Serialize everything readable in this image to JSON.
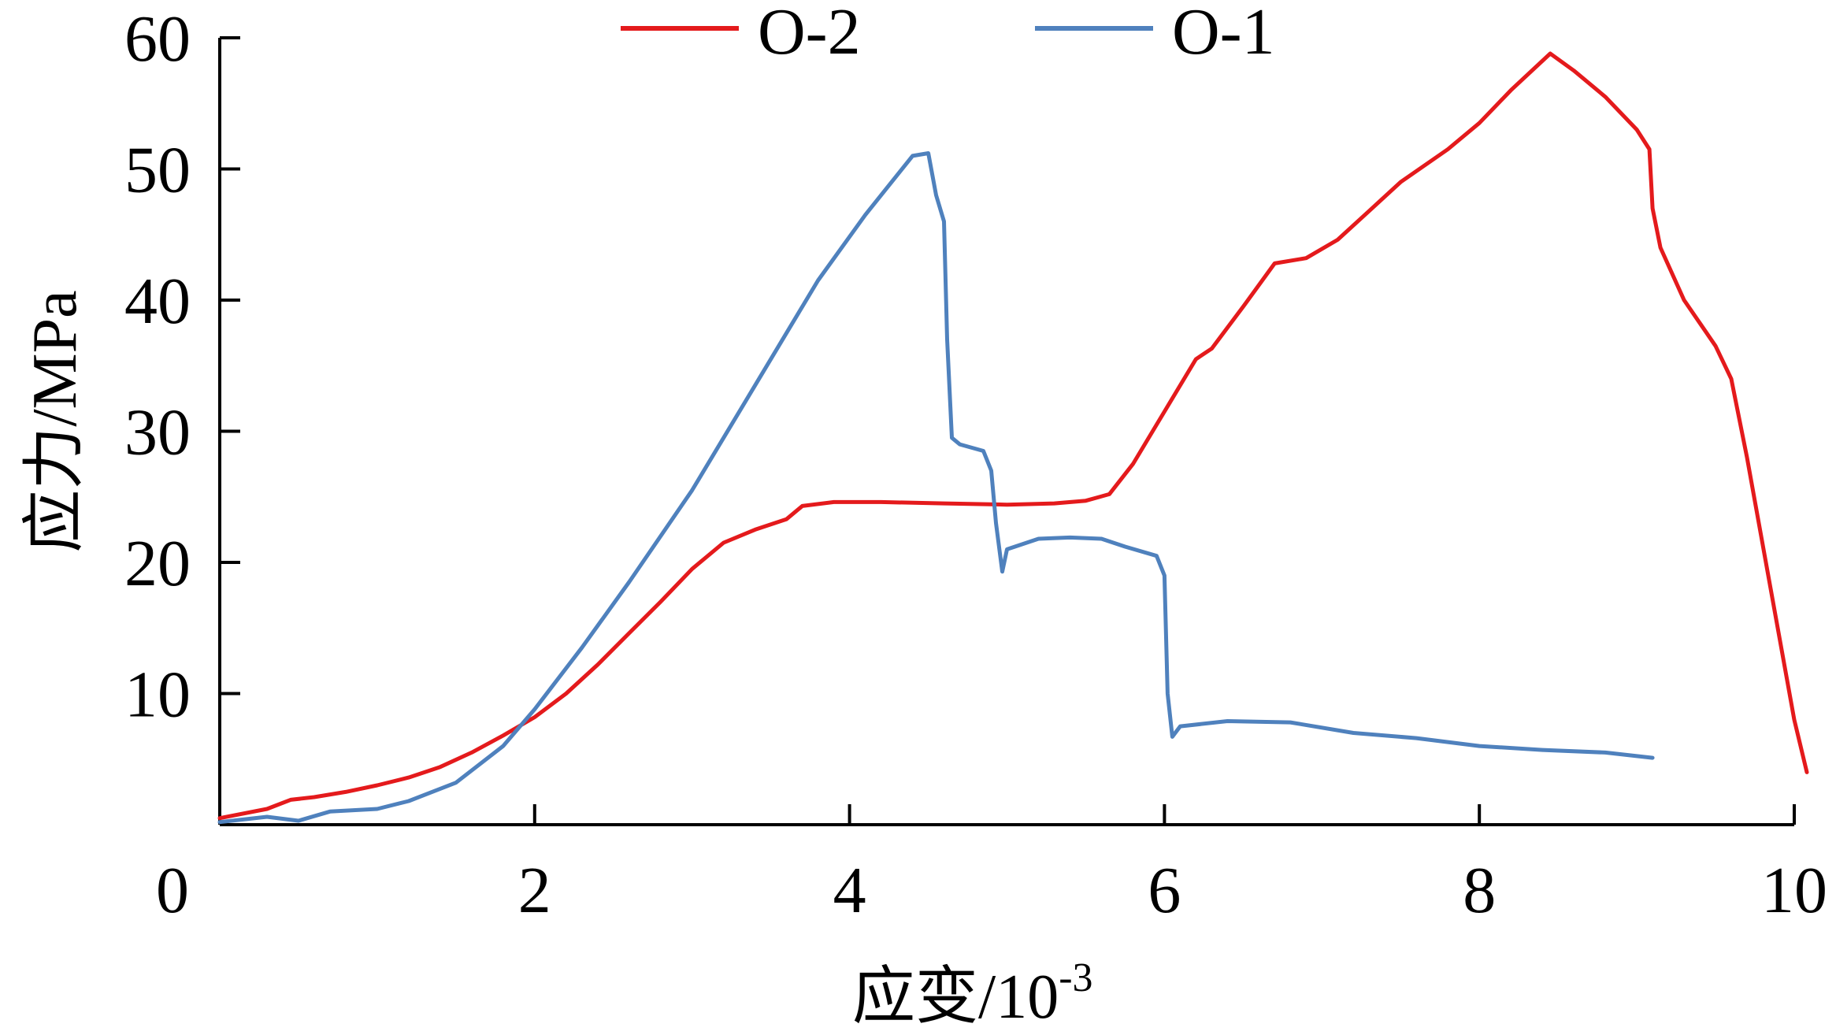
{
  "chart_data": {
    "type": "line",
    "xlabel": "应变/10",
    "xlabel_exponent": "-3",
    "ylabel": "应力/MPa",
    "xlim": [
      0,
      10
    ],
    "ylim": [
      0,
      60
    ],
    "x_ticks": [
      "0",
      "2",
      "4",
      "6",
      "8",
      "10"
    ],
    "y_ticks": [
      "10",
      "20",
      "30",
      "40",
      "50",
      "60"
    ],
    "grid": false,
    "legend": "top-center",
    "series": [
      {
        "name": "O-2",
        "color": "#e41a1c",
        "x": [
          0,
          0.3,
          0.45,
          0.6,
          0.8,
          1.0,
          1.2,
          1.4,
          1.6,
          1.8,
          2.0,
          2.2,
          2.4,
          2.6,
          2.8,
          3.0,
          3.2,
          3.4,
          3.6,
          3.7,
          3.9,
          4.2,
          4.6,
          5.0,
          5.3,
          5.5,
          5.65,
          5.8,
          6.0,
          6.2,
          6.3,
          6.5,
          6.7,
          6.9,
          7.1,
          7.3,
          7.5,
          7.8,
          8.0,
          8.2,
          8.45,
          8.6,
          8.8,
          9.0,
          9.08,
          9.1,
          9.15,
          9.3,
          9.5,
          9.6,
          9.7,
          9.85,
          10.0,
          10.08
        ],
        "y": [
          0.5,
          1.2,
          1.9,
          2.1,
          2.5,
          3.0,
          3.6,
          4.4,
          5.5,
          6.8,
          8.2,
          10.0,
          12.2,
          14.6,
          17.0,
          19.5,
          21.5,
          22.5,
          23.3,
          24.3,
          24.6,
          24.6,
          24.5,
          24.4,
          24.5,
          24.7,
          25.2,
          27.5,
          31.5,
          35.5,
          36.3,
          39.5,
          42.8,
          43.2,
          44.6,
          46.8,
          49.0,
          51.5,
          53.5,
          56.0,
          58.8,
          57.5,
          55.5,
          53.0,
          51.5,
          47.0,
          44.0,
          40.0,
          36.5,
          34.0,
          28.0,
          18.0,
          8.0,
          4.0
        ]
      },
      {
        "name": "O-1",
        "color": "#4f81bd",
        "x": [
          0,
          0.3,
          0.5,
          0.7,
          1.0,
          1.2,
          1.5,
          1.8,
          2.0,
          2.3,
          2.6,
          3.0,
          3.4,
          3.8,
          4.1,
          4.4,
          4.5,
          4.55,
          4.6,
          4.62,
          4.65,
          4.7,
          4.85,
          4.9,
          4.93,
          4.97,
          5.0,
          5.2,
          5.4,
          5.6,
          5.75,
          5.95,
          6.0,
          6.02,
          6.05,
          6.1,
          6.4,
          6.8,
          7.2,
          7.6,
          8.0,
          8.4,
          8.8,
          9.1
        ],
        "y": [
          0.2,
          0.6,
          0.3,
          1.0,
          1.2,
          1.8,
          3.2,
          6.0,
          8.8,
          13.5,
          18.5,
          25.5,
          33.5,
          41.5,
          46.5,
          51.0,
          51.2,
          48.0,
          46.0,
          37.0,
          29.5,
          29.0,
          28.5,
          27.0,
          23.0,
          19.3,
          21.0,
          21.8,
          21.9,
          21.8,
          21.2,
          20.5,
          19.0,
          10.0,
          6.7,
          7.5,
          7.9,
          7.8,
          7.0,
          6.6,
          6.0,
          5.7,
          5.5,
          5.1
        ]
      }
    ]
  }
}
